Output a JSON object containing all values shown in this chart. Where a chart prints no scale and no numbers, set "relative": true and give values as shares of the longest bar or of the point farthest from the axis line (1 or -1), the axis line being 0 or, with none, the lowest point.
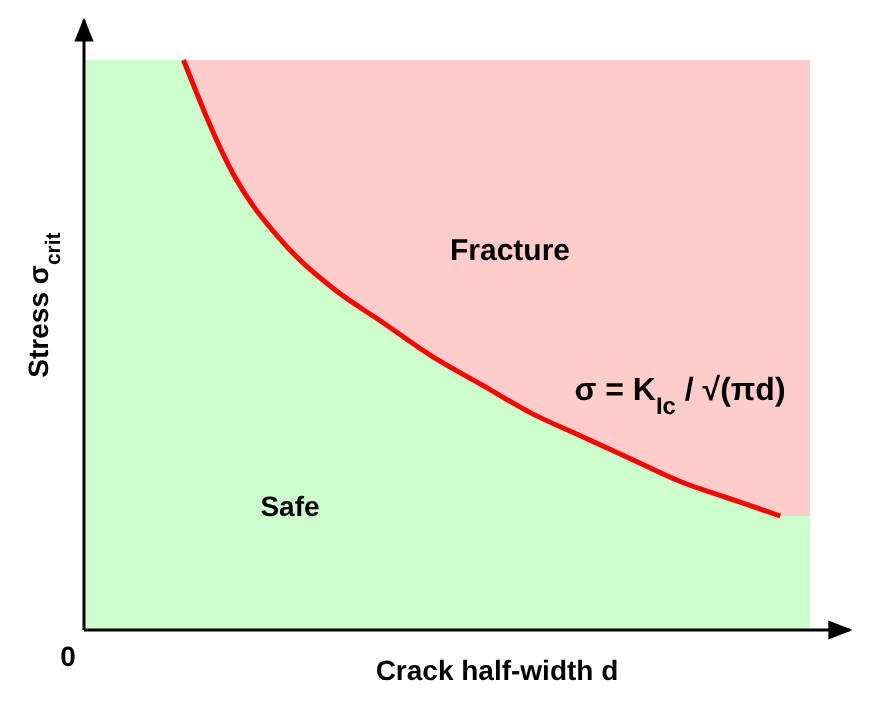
{
  "chart_data": {
    "type": "line",
    "relative": true,
    "xlabel": "Crack half-width d",
    "ylabel": "Stress σ$_{crit}$",
    "categories": [
      null,
      null,
      null,
      null,
      null,
      null,
      null,
      null,
      null,
      null,
      null,
      null,
      null,
      null,
      null,
      null
    ],
    "series": [
      {
        "color": "#ff0000",
        "values": [
          null,
          null,
          1.0,
          0.8,
          0.68,
          0.6,
          0.54,
          0.48,
          0.43,
          0.38,
          0.34,
          0.3,
          0.26,
          0.23,
          0.2,
          null
        ]
      }
    ],
    "annotations": [
      "Fracture",
      "Safe",
      "σ = K$_{Ic}$ / √(πd)",
      "0"
    ],
    "marker": "none",
    "line_style": "solid"
  }
}
